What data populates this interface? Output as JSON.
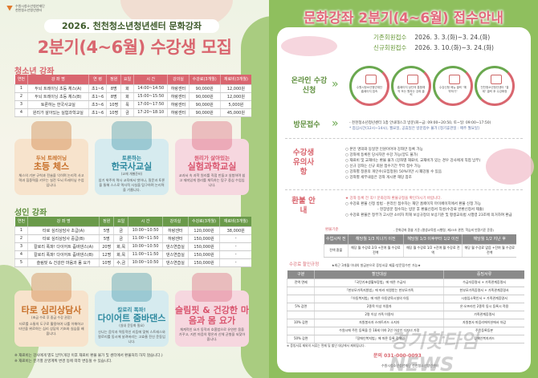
{
  "left": {
    "org": [
      "수원시청소년청년재단",
      "천천청소년청년센터"
    ],
    "header": "2026. 천천청소년청년센터 문화강좌",
    "title": "2분기(4~6월) 수강생 모집",
    "youth": {
      "heading": "청소년 강좌",
      "columns": [
        "연번",
        "강 좌 명",
        "연 령",
        "정원",
        "요일",
        "시 간",
        "강의실",
        "수강료(3개월)",
        "재료비(3개월)"
      ],
      "rows": [
        [
          "1",
          "두뇌 트레이닝 초등 체스(A)",
          "초1~6",
          "8명",
          "화",
          "14:00~14:50",
          "하랑센터",
          "90,000원",
          "12,000원"
        ],
        [
          "2",
          "두뇌 트레이닝 초등 체스(B)",
          "초1~6",
          "8명",
          "화",
          "15:00~15:50",
          "하랑센터",
          "90,000원",
          "12,000원"
        ],
        [
          "3",
          "토론하는 한국사교실",
          "초3~6",
          "10명",
          "목",
          "17:00~17:50",
          "하랑센터",
          "90,000원",
          "5,000원"
        ],
        [
          "4",
          "원리가 살아있는 실험과학교실",
          "초1~6",
          "10명",
          "금",
          "17:20~18:10",
          "하랑센터",
          "90,000원",
          "45,000원"
        ]
      ],
      "cards": [
        {
          "sub": "두뇌 트레이닝",
          "big": "초등 체스",
          "note": "",
          "desc": "체스의 기본 규칙과 전술을 익히며 논리적 사고력과 집중력을 키우는 실전 두뇌 트레이닝 수업입니다."
        },
        {
          "sub": "토론하는",
          "big": "한국사교실",
          "note": "(교재 개별준비)",
          "desc": "암기 위주의 역사 교육에서 벗어나, 질문과 토론을 통해 스스로 역사적 사실을 탐구하며 논리력을 기릅니다."
        },
        {
          "sub": "원리가 살아있는",
          "big": "실험과학교실",
          "note": "",
          "desc": "교과서 속 과학 원리를 직접 만들고 실험하며 쉽고 재미있게 원리를 체득하는 탐구 중심 수업입니다."
        }
      ]
    },
    "adult": {
      "heading": "성인 강좌",
      "columns": [
        "연번",
        "강 좌 명",
        "정원",
        "요일",
        "시 간",
        "강의실",
        "수강료(3개월)",
        "재료비(3개월)"
      ],
      "rows": [
        [
          "1",
          "타로 심리상담사 초급(A)",
          "5명",
          "금",
          "10:00~10:50",
          "하랑센터",
          "120,000원",
          "38,000원"
        ],
        [
          "2",
          "타로 심리상담사 중급(B)",
          "5명",
          "금",
          "11:00~11:50",
          "하랑센터",
          "150,000원",
          "-"
        ],
        [
          "3",
          "칼로리 폭파! 다이어트 줌바댄스(A)",
          "20명",
          "화,목",
          "10:00~10:50",
          "댄스연습실",
          "150,000원",
          "-"
        ],
        [
          "4",
          "칼로리 폭파! 다이어트 줌바댄스(B)",
          "12명",
          "화,목",
          "11:00~11:50",
          "댄스연습실",
          "150,000원",
          "-"
        ],
        [
          "5",
          "슬림핏 & 건강한 마음과 몸 요가",
          "10명",
          "수,금",
          "10:00~10:50",
          "댄스연습실",
          "150,000원",
          "-"
        ]
      ],
      "cards": [
        {
          "sub": "",
          "big": "타로 심리상담사",
          "note": "(초급 수료 후 중급 수강 권장)",
          "desc": "타로를 소통의 도구로 활용하여 나를 이해하고 타인을 위로하는 심리 상담의 기초와 실습을 배웁니다."
        },
        {
          "sub": "칼로리 폭파!",
          "big": "다이어트 줌바댄스",
          "note": "(실내 운동화 필요)",
          "desc": "신나는 음악과 역동적인 리듬에 맞춰 스트레스와 칼로리를 동시에 날려버리는 고효율 전신 운동입니다."
        },
        {
          "sub": "",
          "big": "슬림핏 & 건강한 마음과 몸 요가",
          "note": "",
          "desc": "체계적인 요가 동작과 호흡법으로 유연한 몸을 가꾸고, 지친 마음의 평온과 신체 균형을 되찾아줍니다."
        }
      ]
    },
    "notes": [
      "※ 재료비는 강사에게 별도 납부(개강 이후 재료비 환불 불가 및 센터에서 환불처리 하지 않습니다.)",
      "※ 재료비는 분기별 운영계획 변경 등에 따라 변동될 수 있습니다."
    ]
  },
  "right": {
    "title": "문화강좌 2분기(4~6월) 접수안내",
    "dates": [
      {
        "k": "기존회원접수",
        "v": "2026. 3. 3.(화)~3. 24.(화)"
      },
      {
        "k": "신규회원접수",
        "v": "2026. 3. 10.(화)~3. 24.(화)"
      }
    ],
    "online": {
      "label": "온라인 수강신청",
      "steps": [
        "수원시청소년청년재단 홈페이지 접속",
        "홈페이지 상단의 통합예약 또는 원하는 강좌 클릭",
        "수강신청 메뉴 클릭 \"예약하기\"",
        "천천청소년청년센터 \"결제\" 클릭 후 수강확정"
      ]
    },
    "visit": {
      "label": "방문접수",
      "lines": [
        "- 천천청소년청년센터 1층 안내데스크 방문(화~금: 09:00~20:50, 토~일: 09:00~17:50)",
        "* 점심시간(12시~14시), 월요일, 공휴일은 방문접수 불가 [정기휴관일 : 매주 월요일]"
      ]
    },
    "caution": {
      "label": "수강생 유의사항",
      "lines": [
        "○ 본인 명의와 동일한 인원이어야 강좌만 등록 가능",
        "○ 강좌에 등록된 당사자만 수강 가능(양도 불가)",
        "○ 재료비 및 교재비는 환불 불가 (강좌별 재료비, 교재비가 있는 경우 강사에게 직접 납부)",
        "○ 신규 강좌는 신규 회원 접수기간 부터 접수 가능",
        "○ 강좌별 정원의 개인수(모집정원) 50%미만 시 폐강될 수 있음",
        "○ 강좌별 세부내용은 강좌 게시판 해당 참조"
      ]
    },
    "refund": {
      "label": "환불 안내",
      "lines": [
        "★ 강좌 등록 전 꼭!! 문화강좌 환불규정을 확인하시기 바랍니다.",
        "○ 수강료 환불 신청 방법  - 온라인 접수자는 재단 홈페이지 마이페이지에서 환불 신청 가능",
        "- 현장방문 접수자는 방문 후 환불신청서 작성(수강료 반환신청서 제출)",
        "○ 수강료 환불은 정부가 고시한 소비자 피해 보상규정의 보상기준 및 평생교육법 시행령 23조에 의거하여 환급"
      ],
      "basis_label": "환불기준",
      "basis_note": "- 문화강좌 환불 기준 (평생교육법 시행령, 제23조 관련, 학습비 반환기준 준용)",
      "columns": [
        "수업시작 전",
        "해당월 1/3 지나기 이전",
        "해당월 1/3 이후부터 1/2 이전",
        "해당월 1/2 지난 후"
      ],
      "row": [
        "전액 환불",
        "해당 월 수강료 2/3 +잔여 월 수강료 전액",
        "해당 월 수강료 1/2 +잔여 월 수강료 전액",
        "해당 월 수강료 없음 +잔여 월 수강료 전액"
      ]
    },
    "discount": {
      "label": "수강료 할인규정",
      "note": "★최근 3개월 이내의 발급분으로 증빙서류 제출-방문접수만 가능★",
      "columns": [
        "구분",
        "할인대상",
        "증빙서류"
      ],
      "rows": [
        [
          "전액 면제",
          "「국민기초생활보장법」에 따른 수급자",
          "수급자증명서 + 가족관계증명서"
        ],
        [
          "",
          "「한부모가족지원법」에 따라 지원받는 한부모가족",
          "한부모가족증명서 + 가족관계증명서"
        ],
        [
          "",
          "「아동복지법」에 따른 아동양육시설의 아동",
          "시설입소확인서 + 가족관계증명서"
        ],
        [
          "5% 감면",
          "2종목 이상 이용자",
          "온·오프라인 2종목 동시 등록시 적용"
        ],
        [
          "",
          "2명 이상 가족 이용자",
          "가족관계증명서"
        ],
        [
          "10% 감면",
          "자원봉사자 스마트카드 소지자",
          "자원봉사 마음리에이션에서 차감"
        ],
        [
          "",
          "수원시에 주민 등록을 둔 18세 이하 2인 이상인 다자녀 가정",
          "주민등록등본"
        ],
        [
          "50% 감면",
          "「장애인복지법」에 따른 등록 장애인",
          "장애인복지카드"
        ]
      ],
      "footnote": "※ 증빙서류 제외의 서류는 면제 및 할인 대상에서 제외됩니다."
    },
    "contact": "문의 031-000-0093",
    "org": [
      "수원시청소년청년재단",
      "천천청소년청년센터"
    ]
  },
  "watermark": "경기핫타임NEWS",
  "colors": {
    "pink": "#d9666f",
    "green": "#6a9a4a",
    "bg_green": "#8fbf5e"
  }
}
